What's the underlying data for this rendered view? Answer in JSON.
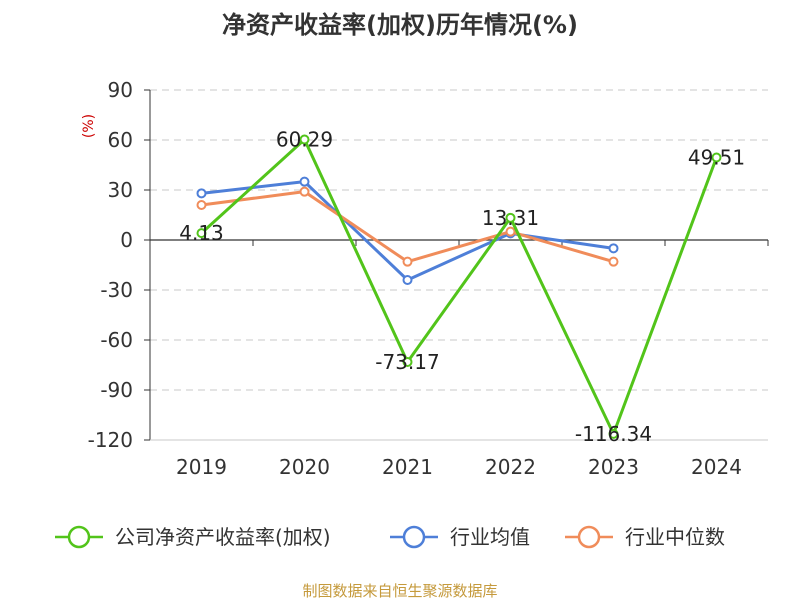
{
  "chart_data": {
    "type": "line",
    "title": "净资产收益率(加权)历年情况(%)",
    "ylabel": "(%)",
    "categories": [
      "2019",
      "2020",
      "2021",
      "2022",
      "2023",
      "2024"
    ],
    "ylim": [
      -120,
      90
    ],
    "yticks": [
      90,
      60,
      30,
      0,
      -30,
      -60,
      -90,
      -120
    ],
    "grid": true,
    "legend_position": "bottom",
    "series": [
      {
        "name": "公司净资产收益率(加权)",
        "color": "#52c41a",
        "values": [
          4.13,
          60.29,
          -73.17,
          13.31,
          -116.34,
          49.51
        ],
        "labels": [
          "4.13",
          "60.29",
          "-73.17",
          "13.31",
          "-116.34",
          "49.51"
        ]
      },
      {
        "name": "行业均值",
        "color": "#4e7fd8",
        "values": [
          28,
          35,
          -24,
          4,
          -5,
          null
        ]
      },
      {
        "name": "行业中位数",
        "color": "#f08c5a",
        "values": [
          21,
          29,
          -13,
          5,
          -13,
          null
        ]
      }
    ],
    "source": "制图数据来自恒生聚源数据库"
  }
}
